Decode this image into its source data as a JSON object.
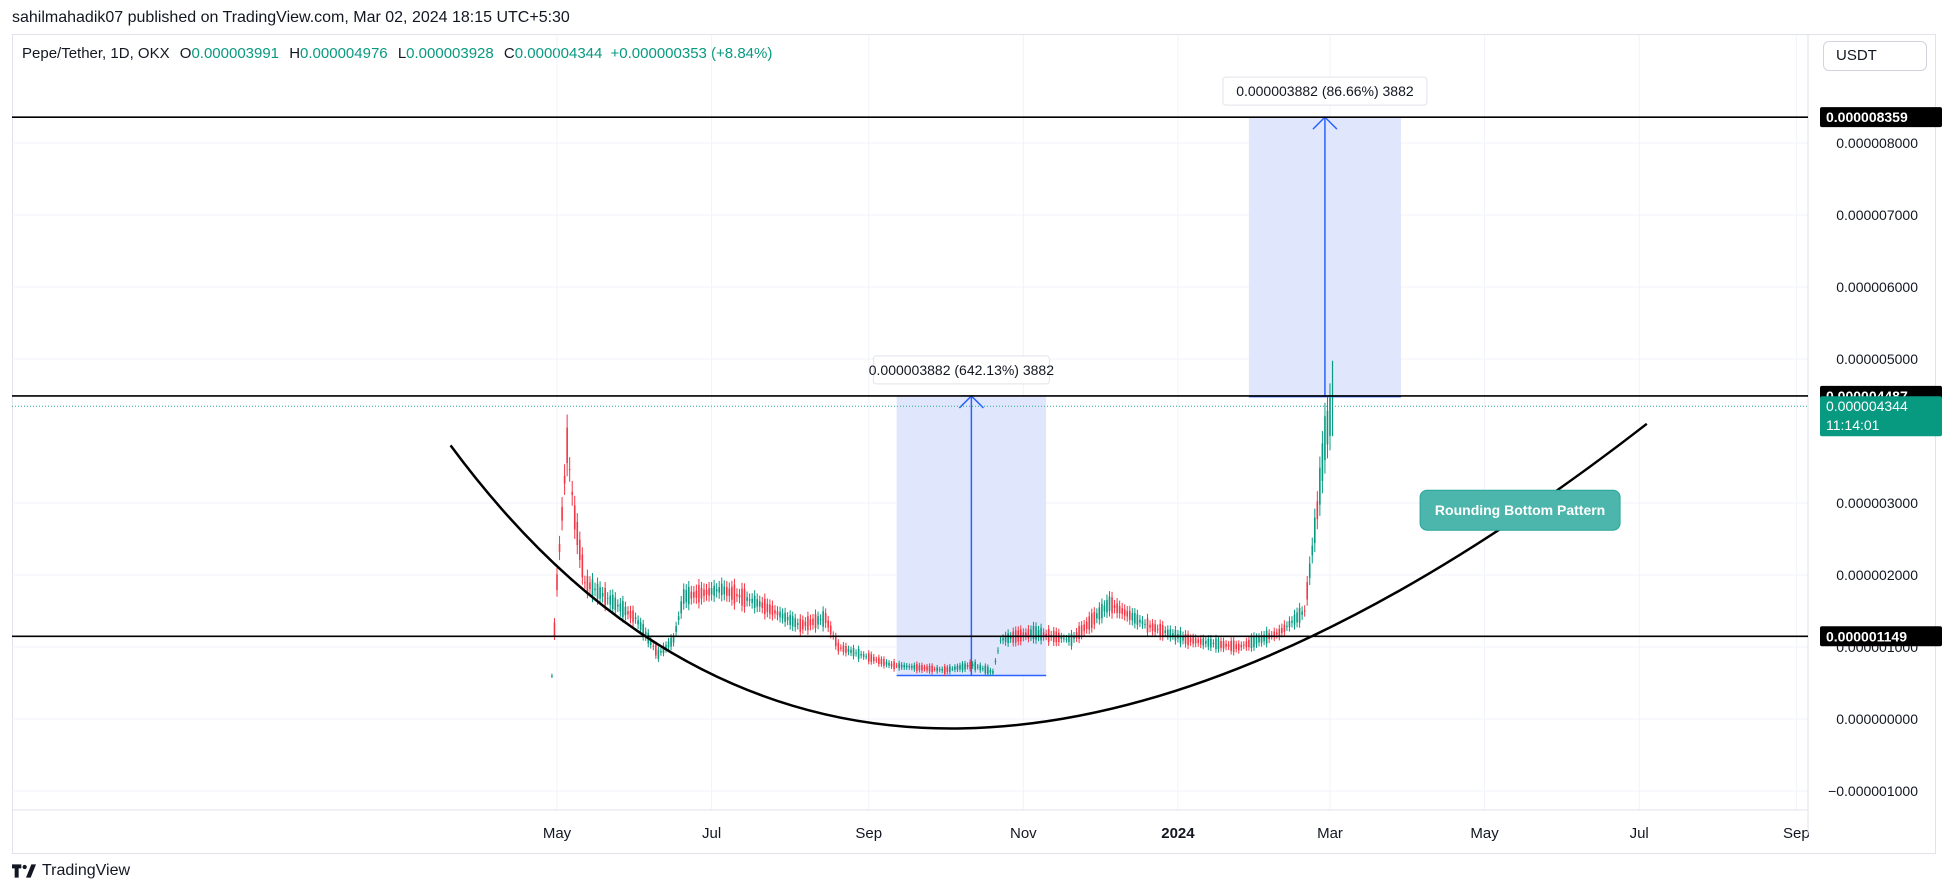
{
  "header": {
    "credit": "sahilmahadik07 published on TradingView.com, Mar 02, 2024 18:15 UTC+5:30",
    "symbol": "Pepe/Tether, 1D, OKX",
    "open_label": "O",
    "open": "0.000003991",
    "high_label": "H",
    "high": "0.000004976",
    "low_label": "L",
    "low": "0.000003928",
    "close_label": "C",
    "close": "0.000004344",
    "change": "+0.000000353 (+8.84%)",
    "currency": "USDT"
  },
  "footer": {
    "brand": "TradingView"
  },
  "colors": {
    "up": "#089981",
    "down": "#f23645",
    "accent": "#2962ff",
    "teal": "#26a69a",
    "box": "#dbe3fd"
  },
  "chart_data": {
    "type": "candlestick",
    "title": "Pepe/Tether, 1D, OKX",
    "xlabel": "",
    "ylabel": "",
    "ylim": [
      -1.1e-06,
      9.2e-06
    ],
    "grid": true,
    "x_ticks": [
      "May",
      "Jul",
      "Sep",
      "Nov",
      "2024",
      "Mar",
      "May",
      "Jul",
      "Sep"
    ],
    "y_ticks": [
      "0.000008000",
      "0.000007000",
      "0.000006000",
      "0.000005000",
      "0.000003000",
      "0.000002000",
      "0.000001000",
      "0.000000000",
      "−0.000001000"
    ],
    "price_series": [
      {
        "date": "2023-04-29",
        "price": 6e-07
      },
      {
        "date": "2023-05-01",
        "price": 1.9e-06
      },
      {
        "date": "2023-05-05",
        "price": 3.8e-06
      },
      {
        "date": "2023-05-08",
        "price": 2.8e-06
      },
      {
        "date": "2023-05-12",
        "price": 1.9e-06
      },
      {
        "date": "2023-05-20",
        "price": 1.7e-06
      },
      {
        "date": "2023-06-01",
        "price": 1.4e-06
      },
      {
        "date": "2023-06-10",
        "price": 9e-07
      },
      {
        "date": "2023-06-16",
        "price": 1.1e-06
      },
      {
        "date": "2023-06-20",
        "price": 1.7e-06
      },
      {
        "date": "2023-07-05",
        "price": 1.8e-06
      },
      {
        "date": "2023-07-20",
        "price": 1.6e-06
      },
      {
        "date": "2023-08-05",
        "price": 1.3e-06
      },
      {
        "date": "2023-08-15",
        "price": 1.4e-06
      },
      {
        "date": "2023-08-20",
        "price": 1e-06
      },
      {
        "date": "2023-09-10",
        "price": 7.5e-07
      },
      {
        "date": "2023-10-01",
        "price": 6.8e-07
      },
      {
        "date": "2023-10-12",
        "price": 7.5e-07
      },
      {
        "date": "2023-10-20",
        "price": 6.5e-07
      },
      {
        "date": "2023-10-23",
        "price": 1.1e-06
      },
      {
        "date": "2023-11-05",
        "price": 1.2e-06
      },
      {
        "date": "2023-11-20",
        "price": 1.1e-06
      },
      {
        "date": "2023-12-05",
        "price": 1.6e-06
      },
      {
        "date": "2023-12-20",
        "price": 1.3e-06
      },
      {
        "date": "2024-01-05",
        "price": 1.1e-06
      },
      {
        "date": "2024-01-25",
        "price": 1e-06
      },
      {
        "date": "2024-02-10",
        "price": 1.2e-06
      },
      {
        "date": "2024-02-20",
        "price": 1.5e-06
      },
      {
        "date": "2024-02-25",
        "price": 2.9e-06
      },
      {
        "date": "2024-02-28",
        "price": 3.9e-06
      },
      {
        "date": "2024-03-02",
        "price": 4.344e-06
      }
    ],
    "horizontal_levels": [
      {
        "price": 8.359e-06,
        "label": "0.000008359"
      },
      {
        "price": 4.487e-06,
        "label": "0.000004487"
      },
      {
        "price": 1.149e-06,
        "label": "0.000001149"
      }
    ],
    "last_price": {
      "price": 4.344e-06,
      "label": "0.000004344",
      "countdown": "11:14:01"
    },
    "measure_boxes": [
      {
        "x_start": "2023-09-12",
        "x_end": "2023-11-10",
        "y_bottom": 6.05e-07,
        "y_top": 4.487e-06,
        "label": "0.000003882 (642.13%) 3882"
      },
      {
        "x_start": "2024-01-29",
        "x_end": "2024-03-29",
        "y_bottom": 4.477e-06,
        "y_top": 8.359e-06,
        "label": "0.000003882 (86.66%) 3882"
      }
    ],
    "curve": {
      "points": [
        {
          "date": "2023-03-20",
          "price": 3.8e-06
        },
        {
          "date": "2023-10-08",
          "price": -1.3e-07
        },
        {
          "date": "2024-07-04",
          "price": 4.1e-06
        }
      ]
    },
    "annotation": {
      "text": "Rounding Bottom Pattern",
      "date": "2024-05-15",
      "price": 2.9e-06
    }
  }
}
